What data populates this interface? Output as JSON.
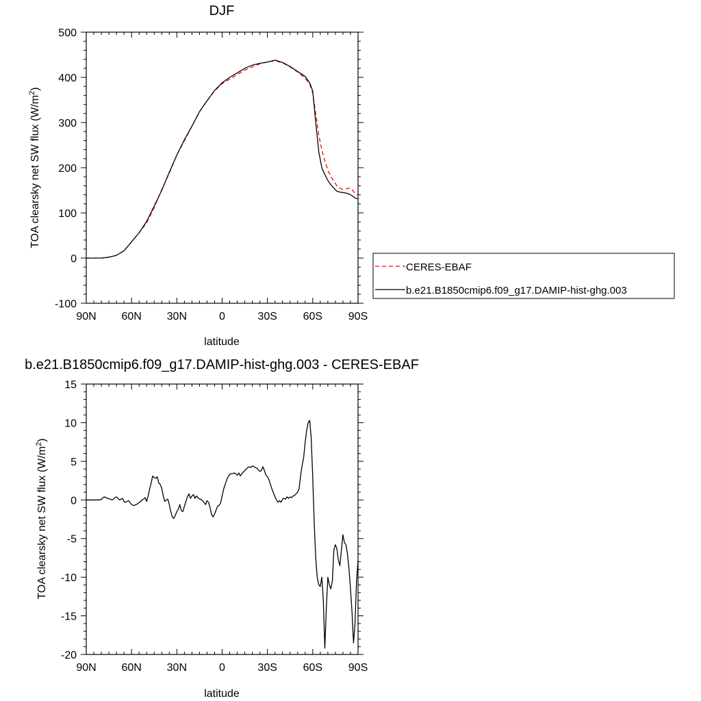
{
  "chart_data": [
    {
      "type": "line",
      "title": "DJF",
      "xlabel": "latitude",
      "ylabel": "TOA clearsky net SW flux (W/m",
      "ylabel_sup": "2",
      "ylabel_tail": ")",
      "xlim": [
        90,
        -90
      ],
      "ylim": [
        -100,
        500
      ],
      "xticks": [
        90,
        60,
        30,
        0,
        -30,
        -60,
        -90
      ],
      "xtick_labels": [
        "90N",
        "60N",
        "30N",
        "0",
        "30S",
        "60S",
        "90S"
      ],
      "yticks": [
        -100,
        0,
        100,
        200,
        300,
        400,
        500
      ],
      "ytick_labels": [
        "-100",
        "0",
        "100",
        "200",
        "300",
        "400",
        "500"
      ],
      "legend": {
        "position": "right"
      },
      "series": [
        {
          "name": "CERES-EBAF",
          "color": "#ff0000",
          "dash": "dashed",
          "x": [
            90,
            85,
            80,
            75,
            70,
            65,
            60,
            55,
            50,
            45,
            40,
            35,
            30,
            25,
            20,
            15,
            10,
            5,
            0,
            -5,
            -10,
            -15,
            -20,
            -25,
            -30,
            -35,
            -40,
            -45,
            -50,
            -55,
            -58,
            -60,
            -62,
            -64,
            -66,
            -68,
            -70,
            -72,
            -74,
            -76,
            -78,
            -80,
            -82,
            -84,
            -86,
            -88,
            -90
          ],
          "y": [
            0,
            0,
            0,
            2,
            6,
            16,
            36,
            56,
            78,
            112,
            152,
            188,
            228,
            260,
            292,
            324,
            348,
            370,
            386,
            396,
            406,
            416,
            423,
            430,
            434,
            437,
            432,
            423,
            412,
            398,
            385,
            365,
            320,
            272,
            240,
            215,
            195,
            180,
            170,
            160,
            155,
            152,
            153,
            155,
            152,
            143,
            140
          ]
        },
        {
          "name": "b.e21.B1850cmip6.f09_g17.DAMIP-hist-ghg.003",
          "color": "#000000",
          "dash": "solid",
          "x": [
            90,
            85,
            80,
            75,
            70,
            65,
            60,
            55,
            50,
            45,
            40,
            35,
            30,
            25,
            20,
            15,
            10,
            5,
            0,
            -5,
            -10,
            -15,
            -20,
            -25,
            -30,
            -35,
            -40,
            -45,
            -50,
            -55,
            -58,
            -60,
            -62,
            -64,
            -66,
            -68,
            -70,
            -72,
            -74,
            -76,
            -78,
            -80,
            -82,
            -84,
            -86,
            -88,
            -90
          ],
          "y": [
            0,
            0,
            0,
            2,
            6,
            16,
            36,
            56,
            81,
            115,
            150,
            190,
            228,
            262,
            292,
            324,
            348,
            371,
            388,
            400,
            410,
            420,
            427,
            431,
            434,
            438,
            433,
            424,
            413,
            402,
            388,
            370,
            300,
            235,
            200,
            185,
            172,
            162,
            155,
            148,
            146,
            145,
            144,
            142,
            138,
            133,
            131
          ]
        }
      ]
    },
    {
      "type": "line",
      "title": "b.e21.B1850cmip6.f09_g17.DAMIP-hist-ghg.003 - CERES-EBAF",
      "xlabel": "latitude",
      "ylabel": "TOA clearsky net SW flux (W/m",
      "ylabel_sup": "2",
      "ylabel_tail": ")",
      "xlim": [
        90,
        -90
      ],
      "ylim": [
        -20,
        15
      ],
      "xticks": [
        90,
        60,
        30,
        0,
        -30,
        -60,
        -90
      ],
      "xtick_labels": [
        "90N",
        "60N",
        "30N",
        "0",
        "30S",
        "60S",
        "90S"
      ],
      "yticks": [
        -20,
        -15,
        -10,
        -5,
        0,
        5,
        10,
        15
      ],
      "ytick_labels": [
        "-20",
        "-15",
        "-10",
        "-5",
        "0",
        "5",
        "10",
        "15"
      ],
      "series": [
        {
          "color": "#000000",
          "dash": "solid",
          "x": [
            90,
            88,
            86,
            84,
            82,
            80,
            79,
            78,
            76,
            74,
            73,
            72,
            71,
            70,
            68,
            66,
            65,
            64,
            62,
            60,
            59,
            58,
            56,
            54,
            53,
            52,
            51,
            50,
            49,
            48,
            47,
            46,
            45,
            44,
            43,
            42,
            41,
            40,
            39,
            38,
            37,
            36,
            35,
            34,
            33,
            32,
            31,
            30,
            29,
            28,
            27,
            26,
            25,
            24,
            23,
            22,
            21,
            20,
            19,
            18,
            17,
            16,
            15,
            14,
            13,
            12,
            11,
            10,
            9,
            8,
            7,
            6,
            5,
            4,
            3,
            2,
            1,
            0,
            -1,
            -2,
            -3,
            -4,
            -5,
            -6,
            -7,
            -8,
            -9,
            -10,
            -11,
            -12,
            -13,
            -14,
            -15,
            -16,
            -17,
            -18,
            -19,
            -20,
            -21,
            -22,
            -23,
            -24,
            -25,
            -26,
            -27,
            -28,
            -29,
            -30,
            -31,
            -32,
            -33,
            -34,
            -35,
            -36,
            -37,
            -38,
            -39,
            -40,
            -41,
            -42,
            -43,
            -44,
            -45,
            -46,
            -47,
            -48,
            -49,
            -50,
            -51,
            -52,
            -53,
            -54,
            -55,
            -56,
            -57,
            -58,
            -59,
            -60,
            -61,
            -62,
            -63,
            -64,
            -65,
            -66,
            -67,
            -68,
            -69,
            -70,
            -71,
            -72,
            -73,
            -74,
            -75,
            -76,
            -77,
            -78,
            -79,
            -80,
            -81,
            -82,
            -83,
            -84,
            -85,
            -86,
            -87,
            -88,
            -89,
            -90
          ],
          "y": [
            0,
            0,
            0,
            0,
            0,
            0.05,
            0.3,
            0.4,
            0.2,
            0.1,
            0,
            0.1,
            0.3,
            0.4,
            0,
            0.2,
            -0.2,
            -0.3,
            -0.1,
            -0.6,
            -0.7,
            -0.7,
            -0.5,
            -0.2,
            0,
            0.1,
            0.3,
            -0.2,
            0.5,
            1.4,
            2.2,
            3.1,
            2.9,
            2.8,
            3.0,
            2.2,
            2.0,
            1.5,
            0.5,
            -0.2,
            0,
            0.1,
            -0.6,
            -1.5,
            -2.2,
            -2.4,
            -2.0,
            -1.5,
            -1.2,
            -0.6,
            -1.4,
            -1.5,
            -0.8,
            -0.2,
            0.4,
            0.8,
            0.2,
            0.5,
            0.7,
            0.2,
            0.5,
            0.3,
            0.1,
            0.1,
            -0.1,
            -0.3,
            -0.6,
            -0.1,
            -0.3,
            -1.0,
            -1.9,
            -2.2,
            -1.8,
            -1.3,
            -0.8,
            -0.7,
            -0.4,
            0.5,
            1.4,
            2.0,
            2.6,
            3.0,
            3.3,
            3.4,
            3.4,
            3.5,
            3.4,
            3.2,
            3.5,
            3.1,
            3.4,
            3.6,
            3.8,
            4.0,
            4.2,
            4.3,
            4.2,
            4.4,
            4.3,
            4.2,
            4.1,
            3.9,
            3.7,
            3.8,
            4.3,
            3.8,
            3.2,
            3.0,
            2.6,
            2.0,
            1.4,
            0.9,
            0.4,
            0.0,
            -0.3,
            -0.1,
            -0.3,
            0.1,
            0.2,
            0.1,
            0.4,
            0.2,
            0.4,
            0.3,
            0.5,
            0.6,
            0.8,
            1.0,
            1.5,
            3.2,
            4.5,
            5.5,
            7.5,
            9.0,
            10.0,
            10.3,
            8.0,
            3.0,
            -3.0,
            -7.5,
            -10.0,
            -11.0,
            -11.2,
            -10.0,
            -13.0,
            -19.2,
            -14.0,
            -10.0,
            -11.0,
            -11.5,
            -10.5,
            -6.5,
            -5.8,
            -6.3,
            -7.8,
            -8.5,
            -6.5,
            -4.5,
            -5.5,
            -5.8,
            -7.0,
            -9.0,
            -11.5,
            -14.5,
            -18.5,
            -16.0,
            -10.5,
            -7.8
          ]
        }
      ]
    }
  ]
}
